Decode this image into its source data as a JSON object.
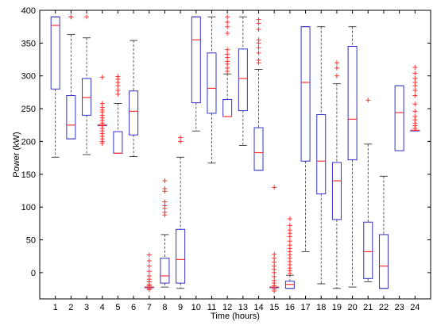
{
  "chart_data": {
    "type": "boxplot",
    "title": "",
    "xlabel": "Time (hours)",
    "ylabel": "Power (kW)",
    "ylim": [
      -40,
      400
    ],
    "yticks": [
      0,
      50,
      100,
      150,
      200,
      250,
      300,
      350,
      400
    ],
    "grid": false,
    "legend": "none",
    "colors": {
      "box": "#3333cc",
      "median": "#ff3333",
      "outlier": "#ff3333",
      "whisker": "#333333",
      "axis": "#000000"
    },
    "categories": [
      "1",
      "2",
      "3",
      "4",
      "5",
      "6",
      "7",
      "8",
      "9",
      "10",
      "11",
      "12",
      "13",
      "14",
      "15",
      "16",
      "17",
      "18",
      "19",
      "20",
      "21",
      "22",
      "23",
      "24"
    ],
    "boxes": [
      {
        "hour": 1,
        "whisker_low": 176,
        "q1": 280,
        "median": 377,
        "q3": 390,
        "whisker_high": 390,
        "outliers": []
      },
      {
        "hour": 2,
        "whisker_low": 204,
        "q1": 204,
        "median": 225,
        "q3": 270,
        "whisker_high": 363,
        "outliers": [
          390,
          390
        ]
      },
      {
        "hour": 3,
        "whisker_low": 180,
        "q1": 240,
        "median": 267,
        "q3": 296,
        "whisker_high": 358,
        "outliers": [
          390
        ]
      },
      {
        "hour": 4,
        "whisker_low": 225,
        "q1": 225,
        "median": 225,
        "q3": 225,
        "whisker_high": 225,
        "outliers": [
          298,
          258,
          252,
          248,
          245,
          240,
          236,
          232,
          228,
          224,
          220,
          216,
          212,
          208,
          204,
          200,
          197
        ]
      },
      {
        "hour": 5,
        "whisker_low": 182,
        "q1": 182,
        "median": 182,
        "q3": 215,
        "whisker_high": 258,
        "outliers": [
          299,
          295,
          290,
          285,
          278,
          272
        ]
      },
      {
        "hour": 6,
        "whisker_low": 177,
        "q1": 210,
        "median": 246,
        "q3": 277,
        "whisker_high": 354,
        "outliers": []
      },
      {
        "hour": 7,
        "whisker_low": -22,
        "q1": -22,
        "median": -22,
        "q3": -22,
        "whisker_high": -22,
        "outliers": [
          27,
          18,
          10,
          2,
          -5,
          -10,
          -14,
          -18,
          -20,
          -24,
          -26
        ]
      },
      {
        "hour": 8,
        "whisker_low": -22,
        "q1": -16,
        "median": -5,
        "q3": 22,
        "whisker_high": 58,
        "outliers": [
          140,
          128,
          124,
          108,
          102,
          98,
          92,
          88
        ]
      },
      {
        "hour": 9,
        "whisker_low": -24,
        "q1": -16,
        "median": 20,
        "q3": 66,
        "whisker_high": 176,
        "outliers": [
          206,
          200
        ]
      },
      {
        "hour": 10,
        "whisker_low": 216,
        "q1": 259,
        "median": 355,
        "q3": 390,
        "whisker_high": 390,
        "outliers": []
      },
      {
        "hour": 11,
        "whisker_low": 167,
        "q1": 243,
        "median": 281,
        "q3": 335,
        "whisker_high": 390,
        "outliers": []
      },
      {
        "hour": 12,
        "whisker_low": 238,
        "q1": 238,
        "median": 238,
        "q3": 264,
        "whisker_high": 303,
        "outliers": [
          390,
          382,
          375,
          365,
          340,
          333,
          328,
          322,
          318,
          312,
          307
        ]
      },
      {
        "hour": 13,
        "whisker_low": 194,
        "q1": 247,
        "median": 296,
        "q3": 341,
        "whisker_high": 390,
        "outliers": []
      },
      {
        "hour": 14,
        "whisker_low": 156,
        "q1": 156,
        "median": 183,
        "q3": 221,
        "whisker_high": 310,
        "outliers": [
          386,
          380,
          371,
          355,
          350,
          343,
          335,
          324,
          320
        ]
      },
      {
        "hour": 15,
        "whisker_low": -22,
        "q1": -22,
        "median": -22,
        "q3": -22,
        "whisker_high": -22,
        "outliers": [
          130,
          28,
          22,
          16,
          10,
          5,
          0,
          -6,
          -12,
          -16,
          -20,
          -25,
          -28
        ]
      },
      {
        "hour": 16,
        "whisker_low": -24,
        "q1": -24,
        "median": -18,
        "q3": -13,
        "whisker_high": -4,
        "outliers": [
          82,
          72,
          65,
          60,
          55,
          48,
          42,
          37,
          32,
          27,
          22,
          17,
          12,
          7,
          3,
          -1
        ]
      },
      {
        "hour": 17,
        "whisker_low": 32,
        "q1": 170,
        "median": 290,
        "q3": 375,
        "whisker_high": 375,
        "outliers": []
      },
      {
        "hour": 18,
        "whisker_low": -17,
        "q1": 120,
        "median": 170,
        "q3": 241,
        "whisker_high": 375,
        "outliers": []
      },
      {
        "hour": 19,
        "whisker_low": -24,
        "q1": 81,
        "median": 140,
        "q3": 168,
        "whisker_high": 288,
        "outliers": [
          320,
          312,
          300
        ]
      },
      {
        "hour": 20,
        "whisker_low": -22,
        "q1": 172,
        "median": 234,
        "q3": 345,
        "whisker_high": 375,
        "outliers": []
      },
      {
        "hour": 21,
        "whisker_low": -14,
        "q1": -9,
        "median": 32,
        "q3": 77,
        "whisker_high": 196,
        "outliers": [
          263
        ]
      },
      {
        "hour": 22,
        "whisker_low": -24,
        "q1": -24,
        "median": 10,
        "q3": 58,
        "whisker_high": 147,
        "outliers": []
      },
      {
        "hour": 23,
        "whisker_low": 186,
        "q1": 186,
        "median": 244,
        "q3": 285,
        "whisker_high": 285,
        "outliers": []
      },
      {
        "hour": 24,
        "whisker_low": 217,
        "q1": 217,
        "median": 217,
        "q3": 217,
        "whisker_high": 217,
        "outliers": [
          313,
          304,
          296,
          290,
          285,
          278,
          270,
          257,
          246,
          238,
          233,
          228,
          224,
          220
        ]
      }
    ]
  }
}
